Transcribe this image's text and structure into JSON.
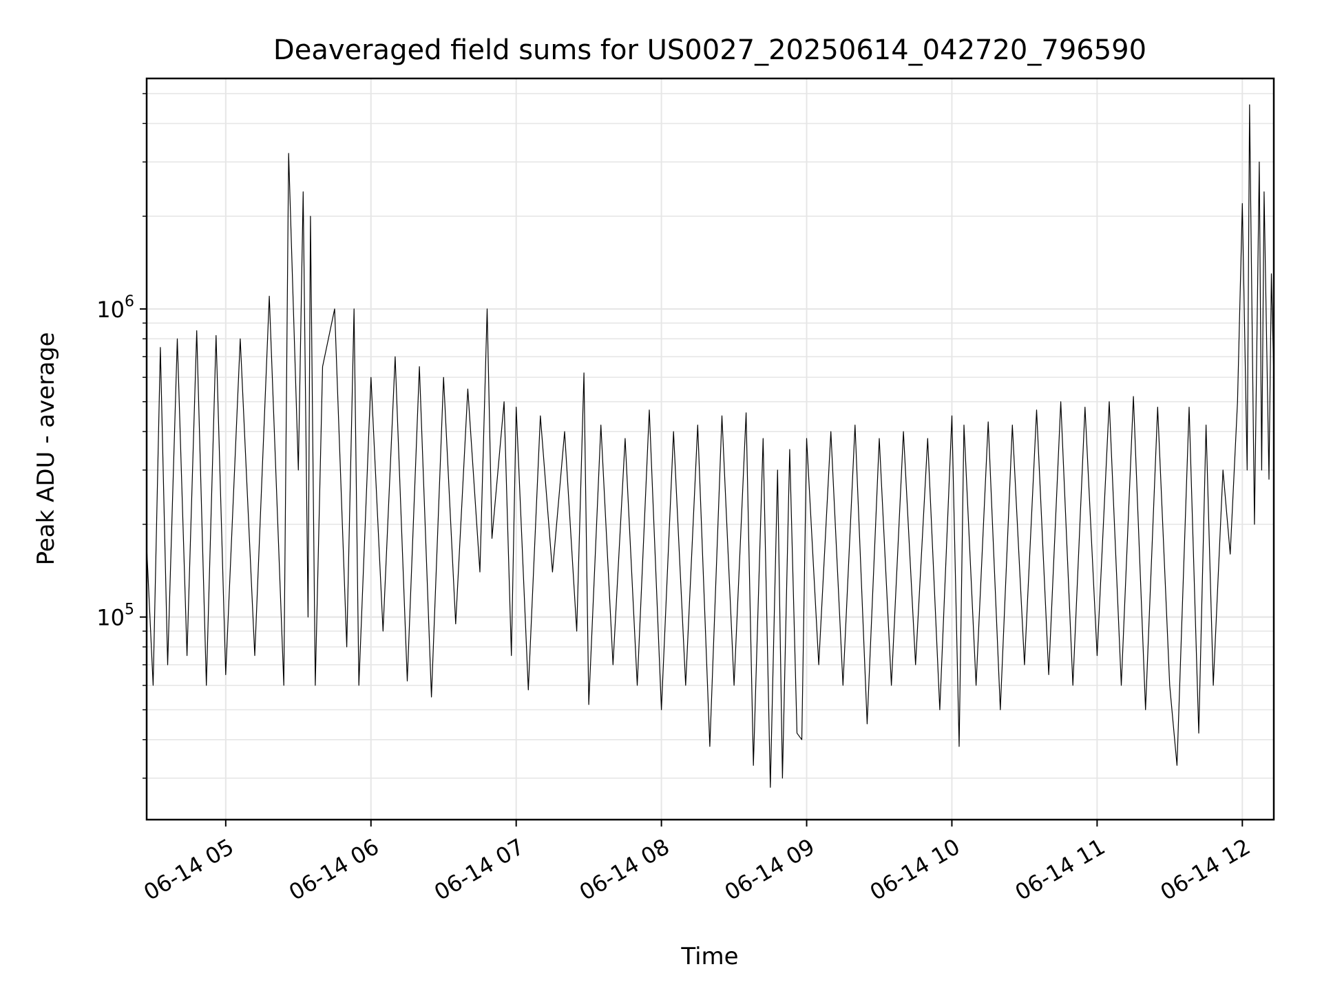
{
  "chart_data": {
    "type": "line",
    "title": "Deaveraged field sums for US0027_20250614_042720_796590",
    "xlabel": "Time",
    "ylabel": "Peak ADU - average",
    "yscale": "log",
    "xlim": [
      "2025-06-14 04:27:20",
      "2025-06-14 12:13:00"
    ],
    "ylim": [
      22000,
      5600000
    ],
    "grid": true,
    "line_color": "#000000",
    "grid_color": "#e6e6e6",
    "x_ticks": [
      {
        "value": "2025-06-14 05:00",
        "label": "06-14 05"
      },
      {
        "value": "2025-06-14 06:00",
        "label": "06-14 06"
      },
      {
        "value": "2025-06-14 07:00",
        "label": "06-14 07"
      },
      {
        "value": "2025-06-14 08:00",
        "label": "06-14 08"
      },
      {
        "value": "2025-06-14 09:00",
        "label": "06-14 09"
      },
      {
        "value": "2025-06-14 10:00",
        "label": "06-14 10"
      },
      {
        "value": "2025-06-14 11:00",
        "label": "06-14 11"
      },
      {
        "value": "2025-06-14 12:00",
        "label": "06-14 12"
      }
    ],
    "y_ticks": [
      {
        "value": 100000,
        "base": "10",
        "exp": "5"
      },
      {
        "value": 1000000,
        "base": "10",
        "exp": "6"
      }
    ],
    "series": [
      {
        "points": [
          [
            "2025-06-14 04:27:20",
            170000
          ],
          [
            "2025-06-14 04:30",
            60000
          ],
          [
            "2025-06-14 04:33",
            750000
          ],
          [
            "2025-06-14 04:36",
            70000
          ],
          [
            "2025-06-14 04:40",
            800000
          ],
          [
            "2025-06-14 04:44",
            75000
          ],
          [
            "2025-06-14 04:48",
            850000
          ],
          [
            "2025-06-14 04:52",
            60000
          ],
          [
            "2025-06-14 04:56",
            820000
          ],
          [
            "2025-06-14 05:00",
            65000
          ],
          [
            "2025-06-14 05:06",
            800000
          ],
          [
            "2025-06-14 05:12",
            75000
          ],
          [
            "2025-06-14 05:18",
            1100000
          ],
          [
            "2025-06-14 05:24",
            60000
          ],
          [
            "2025-06-14 05:26",
            3200000
          ],
          [
            "2025-06-14 05:30",
            300000
          ],
          [
            "2025-06-14 05:32",
            2400000
          ],
          [
            "2025-06-14 05:34",
            100000
          ],
          [
            "2025-06-14 05:35",
            2000000
          ],
          [
            "2025-06-14 05:37",
            60000
          ],
          [
            "2025-06-14 05:40",
            650000
          ],
          [
            "2025-06-14 05:45",
            1000000
          ],
          [
            "2025-06-14 05:50",
            80000
          ],
          [
            "2025-06-14 05:53",
            1000000
          ],
          [
            "2025-06-14 05:55",
            60000
          ],
          [
            "2025-06-14 06:00",
            600000
          ],
          [
            "2025-06-14 06:05",
            90000
          ],
          [
            "2025-06-14 06:10",
            700000
          ],
          [
            "2025-06-14 06:15",
            62000
          ],
          [
            "2025-06-14 06:20",
            650000
          ],
          [
            "2025-06-14 06:25",
            55000
          ],
          [
            "2025-06-14 06:30",
            600000
          ],
          [
            "2025-06-14 06:35",
            95000
          ],
          [
            "2025-06-14 06:40",
            550000
          ],
          [
            "2025-06-14 06:45",
            140000
          ],
          [
            "2025-06-14 06:48",
            1000000
          ],
          [
            "2025-06-14 06:50",
            180000
          ],
          [
            "2025-06-14 06:55",
            500000
          ],
          [
            "2025-06-14 06:58",
            75000
          ],
          [
            "2025-06-14 07:00",
            480000
          ],
          [
            "2025-06-14 07:05",
            58000
          ],
          [
            "2025-06-14 07:10",
            450000
          ],
          [
            "2025-06-14 07:15",
            140000
          ],
          [
            "2025-06-14 07:20",
            400000
          ],
          [
            "2025-06-14 07:25",
            90000
          ],
          [
            "2025-06-14 07:28",
            620000
          ],
          [
            "2025-06-14 07:30",
            52000
          ],
          [
            "2025-06-14 07:35",
            420000
          ],
          [
            "2025-06-14 07:40",
            70000
          ],
          [
            "2025-06-14 07:45",
            380000
          ],
          [
            "2025-06-14 07:50",
            60000
          ],
          [
            "2025-06-14 07:55",
            470000
          ],
          [
            "2025-06-14 08:00",
            50000
          ],
          [
            "2025-06-14 08:05",
            400000
          ],
          [
            "2025-06-14 08:10",
            60000
          ],
          [
            "2025-06-14 08:15",
            420000
          ],
          [
            "2025-06-14 08:20",
            38000
          ],
          [
            "2025-06-14 08:25",
            450000
          ],
          [
            "2025-06-14 08:30",
            60000
          ],
          [
            "2025-06-14 08:35",
            460000
          ],
          [
            "2025-06-14 08:38",
            33000
          ],
          [
            "2025-06-14 08:42",
            380000
          ],
          [
            "2025-06-14 08:45",
            28000
          ],
          [
            "2025-06-14 08:48",
            300000
          ],
          [
            "2025-06-14 08:50",
            30000
          ],
          [
            "2025-06-14 08:53",
            350000
          ],
          [
            "2025-06-14 08:56",
            42000
          ],
          [
            "2025-06-14 08:58",
            40000
          ],
          [
            "2025-06-14 09:00",
            380000
          ],
          [
            "2025-06-14 09:05",
            70000
          ],
          [
            "2025-06-14 09:10",
            400000
          ],
          [
            "2025-06-14 09:15",
            60000
          ],
          [
            "2025-06-14 09:20",
            420000
          ],
          [
            "2025-06-14 09:25",
            45000
          ],
          [
            "2025-06-14 09:30",
            380000
          ],
          [
            "2025-06-14 09:35",
            60000
          ],
          [
            "2025-06-14 09:40",
            400000
          ],
          [
            "2025-06-14 09:45",
            70000
          ],
          [
            "2025-06-14 09:50",
            380000
          ],
          [
            "2025-06-14 09:55",
            50000
          ],
          [
            "2025-06-14 10:00",
            450000
          ],
          [
            "2025-06-14 10:03",
            38000
          ],
          [
            "2025-06-14 10:05",
            420000
          ],
          [
            "2025-06-14 10:10",
            60000
          ],
          [
            "2025-06-14 10:15",
            430000
          ],
          [
            "2025-06-14 10:20",
            50000
          ],
          [
            "2025-06-14 10:25",
            420000
          ],
          [
            "2025-06-14 10:30",
            70000
          ],
          [
            "2025-06-14 10:35",
            470000
          ],
          [
            "2025-06-14 10:40",
            65000
          ],
          [
            "2025-06-14 10:45",
            500000
          ],
          [
            "2025-06-14 10:50",
            60000
          ],
          [
            "2025-06-14 10:55",
            480000
          ],
          [
            "2025-06-14 11:00",
            75000
          ],
          [
            "2025-06-14 11:05",
            500000
          ],
          [
            "2025-06-14 11:10",
            60000
          ],
          [
            "2025-06-14 11:15",
            520000
          ],
          [
            "2025-06-14 11:20",
            50000
          ],
          [
            "2025-06-14 11:25",
            480000
          ],
          [
            "2025-06-14 11:30",
            60000
          ],
          [
            "2025-06-14 11:33",
            33000
          ],
          [
            "2025-06-14 11:38",
            480000
          ],
          [
            "2025-06-14 11:42",
            42000
          ],
          [
            "2025-06-14 11:45",
            420000
          ],
          [
            "2025-06-14 11:48",
            60000
          ],
          [
            "2025-06-14 11:52",
            300000
          ],
          [
            "2025-06-14 11:55",
            160000
          ],
          [
            "2025-06-14 11:58",
            500000
          ],
          [
            "2025-06-14 12:00",
            2200000
          ],
          [
            "2025-06-14 12:02",
            300000
          ],
          [
            "2025-06-14 12:03",
            4600000
          ],
          [
            "2025-06-14 12:05",
            200000
          ],
          [
            "2025-06-14 12:07",
            3000000
          ],
          [
            "2025-06-14 12:08",
            300000
          ],
          [
            "2025-06-14 12:09",
            2400000
          ],
          [
            "2025-06-14 12:11",
            280000
          ],
          [
            "2025-06-14 12:12",
            1300000
          ],
          [
            "2025-06-14 12:13",
            600000
          ]
        ]
      }
    ]
  }
}
